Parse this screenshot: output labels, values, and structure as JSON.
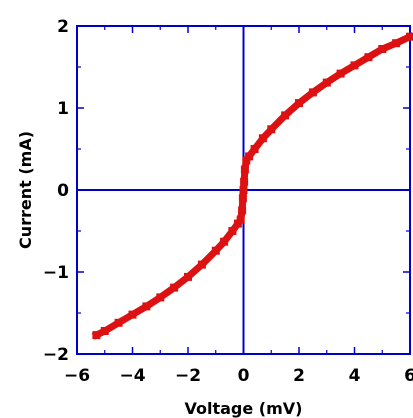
{
  "chart_data": {
    "type": "scatter",
    "title": "",
    "xlabel": "Voltage (mV)",
    "ylabel": "Current (mA)",
    "xlim": [
      -6,
      6
    ],
    "ylim": [
      -2,
      2
    ],
    "xticks": [
      -6,
      -4,
      -2,
      0,
      2,
      4,
      6
    ],
    "yticks": [
      -2,
      -1,
      0,
      1,
      2
    ],
    "xtick_labels": [
      "−6",
      "−4",
      "−2",
      "0",
      "2",
      "4",
      "6"
    ],
    "ytick_labels": [
      "−2",
      "−1",
      "0",
      "1",
      "2"
    ],
    "grid": false,
    "zero_lines": true,
    "series": [
      {
        "color": "#dd1111",
        "x": [
          -5.3,
          -5.0,
          -4.5,
          -4.0,
          -3.5,
          -3.0,
          -2.5,
          -2.0,
          -1.5,
          -1.0,
          -0.7,
          -0.4,
          -0.2,
          -0.1,
          -0.05,
          -0.02,
          0.0,
          0.02,
          0.05,
          0.1,
          0.2,
          0.4,
          0.7,
          1.0,
          1.5,
          2.0,
          2.5,
          3.0,
          3.5,
          4.0,
          4.5,
          5.0,
          5.5,
          6.0
        ],
        "y": [
          -1.77,
          -1.72,
          -1.62,
          -1.52,
          -1.42,
          -1.31,
          -1.19,
          -1.06,
          -0.91,
          -0.74,
          -0.63,
          -0.5,
          -0.41,
          -0.36,
          -0.25,
          -0.1,
          0.0,
          0.1,
          0.25,
          0.36,
          0.41,
          0.5,
          0.63,
          0.74,
          0.91,
          1.06,
          1.19,
          1.31,
          1.42,
          1.52,
          1.62,
          1.72,
          1.79,
          1.87
        ]
      }
    ]
  },
  "colors": {
    "axis_frame": "#0000cc",
    "zero_lines": "#0000cc",
    "data": "#dd1111"
  }
}
